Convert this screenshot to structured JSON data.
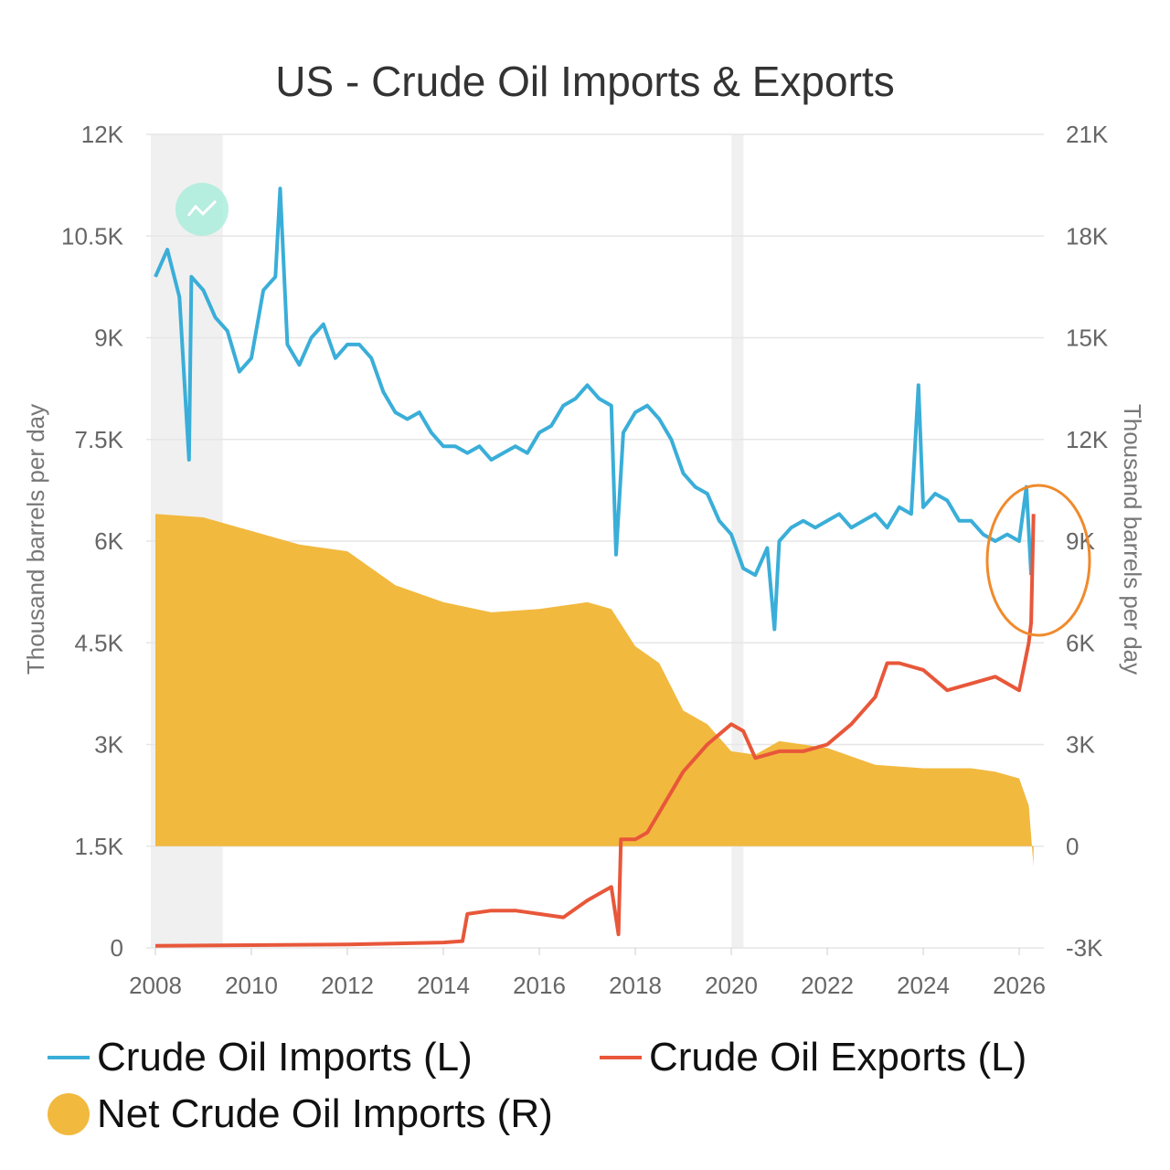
{
  "chart_data": {
    "type": "line",
    "title": "US - Crude Oil Imports & Exports",
    "ylabel_left": "Thousand barrels per day",
    "ylabel_right": "Thousand barrels per day",
    "xlim": [
      2008,
      2026
    ],
    "ylim_left": [
      0,
      12000
    ],
    "ylim_right": [
      -3000,
      21000
    ],
    "x_ticks": [
      "2008",
      "2010",
      "2012",
      "2014",
      "2016",
      "2018",
      "2020",
      "2022",
      "2024",
      "2026"
    ],
    "y_ticks_left": [
      "0",
      "1.5K",
      "3K",
      "4.5K",
      "6K",
      "7.5K",
      "9K",
      "10.5K",
      "12K"
    ],
    "y_ticks_right": [
      "-3K",
      "0",
      "3K",
      "6K",
      "9K",
      "12K",
      "15K",
      "18K",
      "21K"
    ],
    "grid": true,
    "legend_position": "bottom",
    "shaded_periods": [
      [
        2008.0,
        2009.5
      ],
      [
        2020.1,
        2020.35
      ]
    ],
    "series": [
      {
        "name": "Crude Oil Imports (L)",
        "axis": "left",
        "kind": "line",
        "color": "#3aaed8",
        "x": [
          2008.0,
          2008.25,
          2008.5,
          2008.7,
          2008.75,
          2009.0,
          2009.25,
          2009.5,
          2009.75,
          2010.0,
          2010.25,
          2010.5,
          2010.6,
          2010.75,
          2011.0,
          2011.25,
          2011.5,
          2011.75,
          2012.0,
          2012.25,
          2012.5,
          2012.75,
          2013.0,
          2013.25,
          2013.5,
          2013.75,
          2014.0,
          2014.25,
          2014.5,
          2014.75,
          2015.0,
          2015.25,
          2015.5,
          2015.75,
          2016.0,
          2016.25,
          2016.5,
          2016.75,
          2017.0,
          2017.25,
          2017.5,
          2017.6,
          2017.75,
          2018.0,
          2018.25,
          2018.5,
          2018.75,
          2019.0,
          2019.25,
          2019.5,
          2019.75,
          2020.0,
          2020.25,
          2020.5,
          2020.75,
          2020.9,
          2021.0,
          2021.25,
          2021.5,
          2021.75,
          2022.0,
          2022.25,
          2022.5,
          2022.75,
          2023.0,
          2023.25,
          2023.5,
          2023.75,
          2023.9,
          2024.0,
          2024.25,
          2024.5,
          2024.75,
          2025.0,
          2025.25,
          2025.5,
          2025.75,
          2026.0,
          2026.15,
          2026.25
        ],
        "y": [
          9900,
          10300,
          9600,
          7200,
          9900,
          9700,
          9300,
          9100,
          8500,
          8700,
          9700,
          9900,
          11200,
          8900,
          8600,
          9000,
          9200,
          8700,
          8900,
          8900,
          8700,
          8200,
          7900,
          7800,
          7900,
          7600,
          7400,
          7400,
          7300,
          7400,
          7200,
          7300,
          7400,
          7300,
          7600,
          7700,
          8000,
          8100,
          8300,
          8100,
          8000,
          5800,
          7600,
          7900,
          8000,
          7800,
          7500,
          7000,
          6800,
          6700,
          6300,
          6100,
          5600,
          5500,
          5900,
          4700,
          6000,
          6200,
          6300,
          6200,
          6300,
          6400,
          6200,
          6300,
          6400,
          6200,
          6500,
          6400,
          8300,
          6500,
          6700,
          6600,
          6300,
          6300,
          6100,
          6000,
          6100,
          6000,
          6800,
          5500
        ]
      },
      {
        "name": "Crude Oil Exports (L)",
        "axis": "left",
        "kind": "line",
        "color": "#e8573a",
        "x": [
          2008.0,
          2010.0,
          2012.0,
          2014.0,
          2014.4,
          2014.5,
          2015.0,
          2015.5,
          2016.0,
          2016.5,
          2017.0,
          2017.5,
          2017.65,
          2017.7,
          2018.0,
          2018.25,
          2018.5,
          2019.0,
          2019.5,
          2020.0,
          2020.25,
          2020.5,
          2021.0,
          2021.5,
          2022.0,
          2022.5,
          2023.0,
          2023.25,
          2023.5,
          2024.0,
          2024.5,
          2025.0,
          2025.5,
          2026.0,
          2026.2,
          2026.25,
          2026.3
        ],
        "y": [
          30,
          40,
          50,
          80,
          100,
          500,
          550,
          550,
          500,
          450,
          700,
          900,
          200,
          1600,
          1600,
          1700,
          2000,
          2600,
          3000,
          3300,
          3200,
          2800,
          2900,
          2900,
          3000,
          3300,
          3700,
          4200,
          4200,
          4100,
          3800,
          3900,
          4000,
          3800,
          4500,
          4800,
          6400
        ]
      },
      {
        "name": "Net Crude Oil Imports (R)",
        "axis": "right",
        "kind": "area",
        "color": "#f2b93f",
        "x": [
          2008.0,
          2009.0,
          2010.0,
          2011.0,
          2012.0,
          2013.0,
          2014.0,
          2015.0,
          2016.0,
          2017.0,
          2017.5,
          2018.0,
          2018.5,
          2019.0,
          2019.5,
          2020.0,
          2020.5,
          2021.0,
          2022.0,
          2023.0,
          2024.0,
          2025.0,
          2025.5,
          2026.0,
          2026.2,
          2026.3
        ],
        "y": [
          9800,
          9700,
          9300,
          8900,
          8700,
          7700,
          7200,
          6900,
          7000,
          7200,
          7000,
          5900,
          5400,
          4000,
          3600,
          2800,
          2700,
          3100,
          2900,
          2400,
          2300,
          2300,
          2200,
          2000,
          1200,
          -600
        ]
      }
    ]
  },
  "colors": {
    "annotation_circle": "#f08a2c",
    "badge": "#a6ecd9",
    "grid": "#e6e6e6",
    "shade": "#f0f0f0"
  }
}
